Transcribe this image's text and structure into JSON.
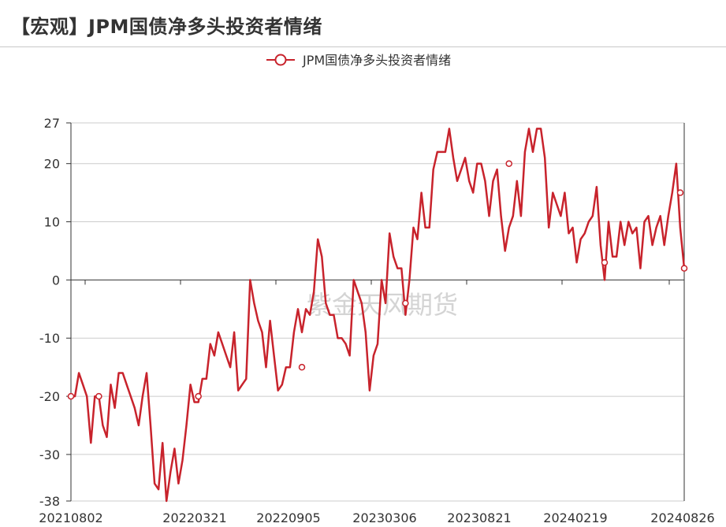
{
  "page_title": "【宏观】JPM国债净多头投资者情绪",
  "watermark": "紫金天风期货",
  "colors": {
    "series": "#c8232c",
    "grid": "#cccccc",
    "axis": "#333333"
  },
  "chart_data": {
    "type": "line",
    "title": "",
    "legend": {
      "position": "top-center",
      "entries": [
        "JPM国债净多头投资者情绪"
      ]
    },
    "xlabel": "",
    "ylabel": "",
    "ylim": [
      -38,
      27
    ],
    "yticks": [
      27,
      20,
      10,
      0,
      -10,
      -20,
      -30,
      -38
    ],
    "xtick_labels": [
      "20210802",
      "20220321",
      "20220905",
      "20230306",
      "20230821",
      "20240219",
      "20240826"
    ],
    "grid": "horizontal",
    "series": [
      {
        "name": "JPM国债净多头投资者情绪",
        "values": [
          -20,
          -20,
          -16,
          -18,
          -20,
          -28,
          -20,
          -20,
          -25,
          -27,
          -18,
          -22,
          -16,
          -16,
          -18,
          -20,
          -22,
          -25,
          -20,
          -16,
          -25,
          -35,
          -36,
          -28,
          -38,
          -33,
          -29,
          -35,
          -31,
          -25,
          -18,
          -21,
          -21,
          -17,
          -17,
          -11,
          -13,
          -9,
          -11,
          -13,
          -15,
          -9,
          -19,
          -18,
          -17,
          0,
          -4,
          -7,
          -9,
          -15,
          -7,
          -13,
          -19,
          -18,
          -15,
          -15,
          -9,
          -5,
          -9,
          -5,
          -6,
          -2,
          7,
          4,
          -4,
          -6,
          -6,
          -10,
          -10,
          -11,
          -13,
          0,
          -2,
          -4,
          -9,
          -19,
          -13,
          -11,
          0,
          -4,
          8,
          4,
          2,
          2,
          -6,
          0,
          9,
          7,
          15,
          9,
          9,
          19,
          22,
          22,
          22,
          26,
          21,
          17,
          19,
          21,
          17,
          15,
          20,
          20,
          17,
          11,
          17,
          19,
          11,
          5,
          9,
          11,
          17,
          11,
          22,
          26,
          22,
          26,
          26,
          21,
          9,
          15,
          13,
          11,
          15,
          8,
          9,
          3,
          7,
          8,
          10,
          11,
          16,
          6,
          0,
          10,
          4,
          4,
          10,
          6,
          10,
          8,
          9,
          2,
          10,
          11,
          6,
          9,
          11,
          6,
          11,
          15,
          20,
          9,
          2
        ],
        "marked_points": [
          {
            "x": "20210802",
            "y": -20
          },
          {
            "x": "20211004",
            "y": -20
          },
          {
            "x": "20220328",
            "y": -20
          },
          {
            "x": "20221010",
            "y": -15
          },
          {
            "x": "20230403",
            "y": -4
          },
          {
            "x": "20230904",
            "y": 20
          },
          {
            "x": "20240311",
            "y": 3
          },
          {
            "x": "20240812",
            "y": 15
          },
          {
            "x": "20240826",
            "y": 2
          }
        ]
      }
    ]
  }
}
